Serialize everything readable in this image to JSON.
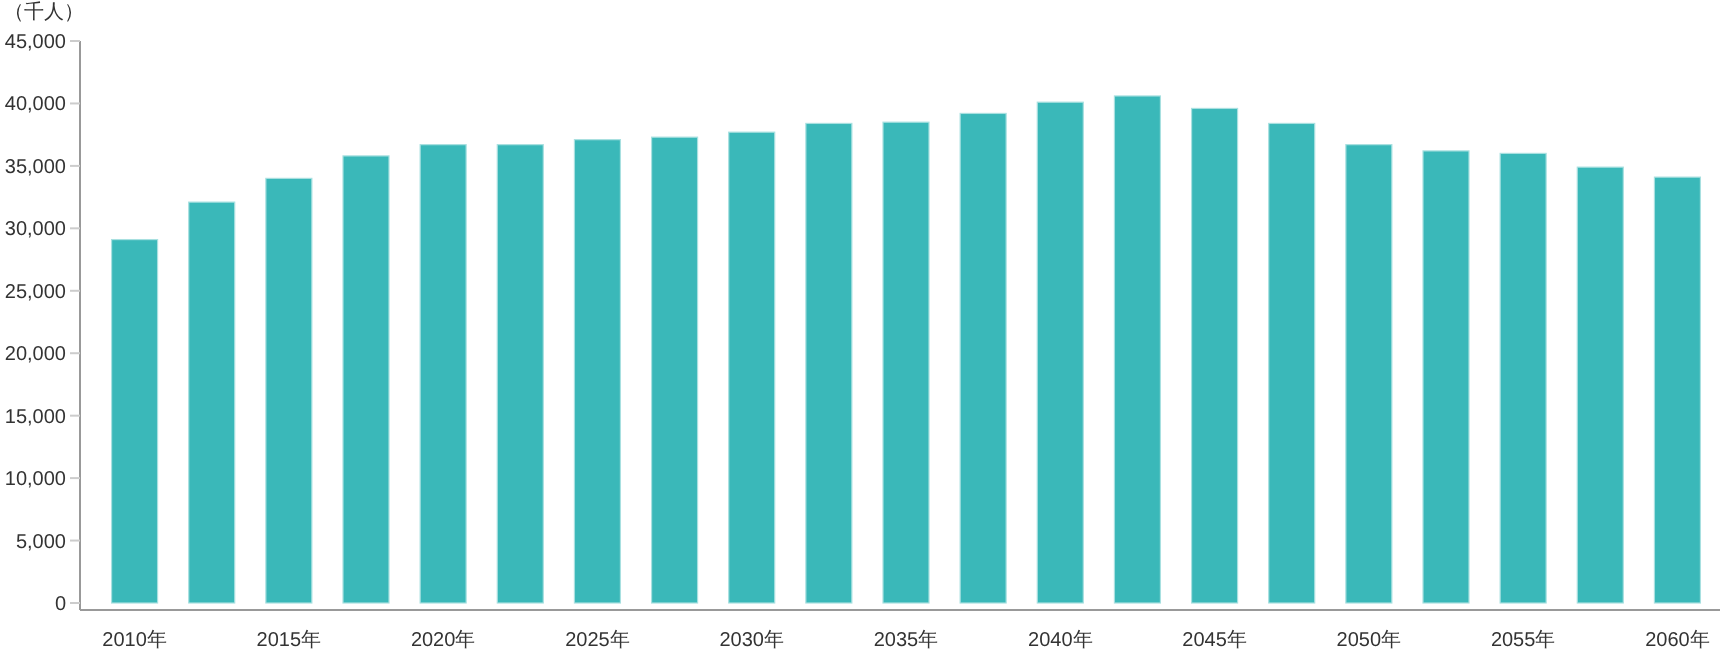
{
  "chart_data": {
    "type": "bar",
    "ylabel": "（千人）",
    "categories": [
      "2010年",
      null,
      "2015年",
      null,
      "2020年",
      null,
      "2025年",
      null,
      "2030年",
      null,
      "2035年",
      null,
      "2040年",
      null,
      "2045年",
      null,
      "2050年",
      null,
      "2055年",
      null,
      "2060年"
    ],
    "values": [
      29100,
      32100,
      34000,
      35800,
      36700,
      36700,
      37100,
      37300,
      37700,
      38400,
      38500,
      39200,
      40100,
      40600,
      39600,
      38400,
      36700,
      36200,
      36000,
      34900,
      34100
    ],
    "color": "#3ab8b9",
    "ylim": [
      0,
      45000
    ],
    "yticks": [
      {
        "value": 0,
        "label": "0"
      },
      {
        "value": 5000,
        "label": "5,000"
      },
      {
        "value": 10000,
        "label": "10,000"
      },
      {
        "value": 15000,
        "label": "15,000"
      },
      {
        "value": 20000,
        "label": "20,000"
      },
      {
        "value": 25000,
        "label": "25,000"
      },
      {
        "value": 30000,
        "label": "30,000"
      },
      {
        "value": 35000,
        "label": "35,000"
      },
      {
        "value": 40000,
        "label": "40,000"
      },
      {
        "value": 45000,
        "label": "45,000"
      }
    ],
    "grid": false
  }
}
